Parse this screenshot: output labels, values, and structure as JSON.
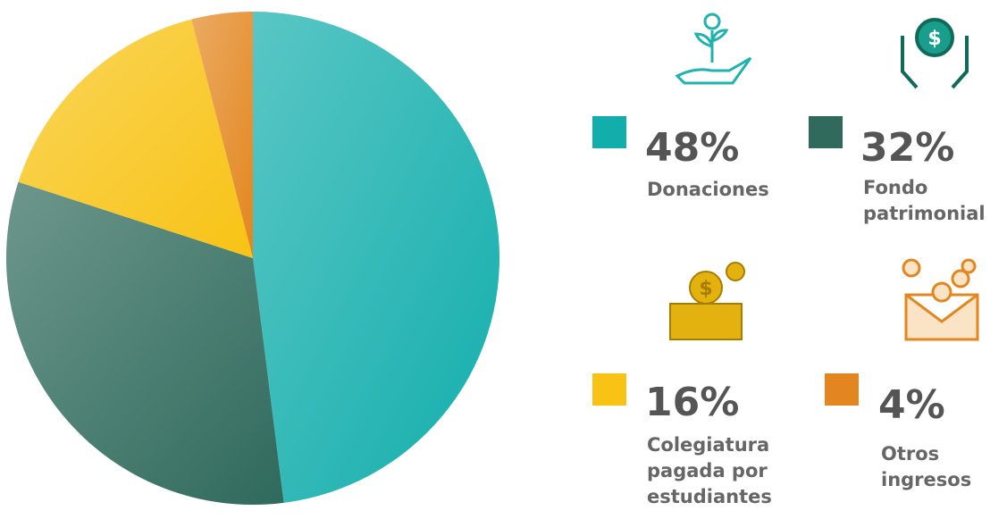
{
  "chart_data": {
    "type": "pie",
    "categories": [
      "Donaciones",
      "Fondo patrimonial",
      "Colegiatura pagada por estudiantes",
      "Otros ingresos"
    ],
    "values": [
      48,
      32,
      16,
      4
    ],
    "value_labels": [
      "48%",
      "32%",
      "16%",
      "4%"
    ],
    "colors": [
      "#12aeac",
      "#2f6a5c",
      "#f8c314",
      "#e3861f"
    ]
  }
}
